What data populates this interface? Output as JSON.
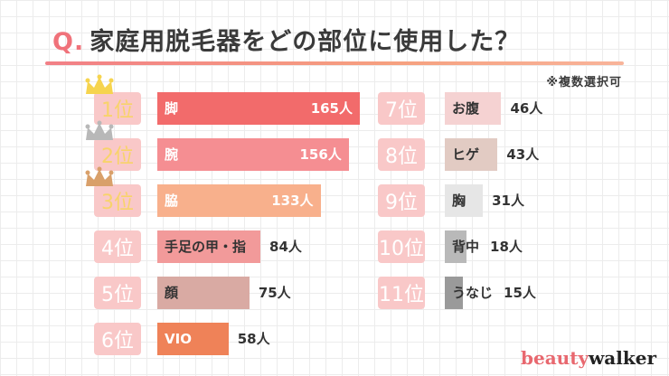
{
  "title": {
    "prefix": "Q.",
    "text": "家庭用脱毛器をどの部位に使用した？"
  },
  "note": "※複数選択可",
  "logo": {
    "part1": "beauty",
    "part2": "walker"
  },
  "colors": {
    "rank_box": "#f9c8c8",
    "crown_gold": "#f6d44e",
    "crown_silver": "#b8b8b8",
    "crown_bronze": "#d9a06a"
  },
  "chart_data": {
    "type": "bar",
    "orientation": "horizontal",
    "unit": "人",
    "xlim": [
      0,
      165
    ],
    "items": [
      {
        "rank": "1位",
        "category": "脚",
        "value": 165,
        "color": "#f26b6b",
        "crown": "gold"
      },
      {
        "rank": "2位",
        "category": "腕",
        "value": 156,
        "color": "#f58e92",
        "crown": "silver"
      },
      {
        "rank": "3位",
        "category": "脇",
        "value": 133,
        "color": "#f8b08c",
        "crown": "bronze"
      },
      {
        "rank": "4位",
        "category": "手足の甲・指",
        "value": 84,
        "color": "#f29a9a"
      },
      {
        "rank": "5位",
        "category": "顔",
        "value": 75,
        "color": "#d9aaa3"
      },
      {
        "rank": "6位",
        "category": "VIO",
        "value": 58,
        "color": "#ef8258"
      },
      {
        "rank": "7位",
        "category": "お腹",
        "value": 46,
        "color": "#f5d2d2"
      },
      {
        "rank": "8位",
        "category": "ヒゲ",
        "value": 43,
        "color": "#e2cbc3"
      },
      {
        "rank": "9位",
        "category": "胸",
        "value": 31,
        "color": "#e6e6e6"
      },
      {
        "rank": "10位",
        "category": "背中",
        "value": 18,
        "color": "#b9b9b9"
      },
      {
        "rank": "11位",
        "category": "うなじ",
        "value": 15,
        "color": "#9a9a9a"
      }
    ]
  }
}
